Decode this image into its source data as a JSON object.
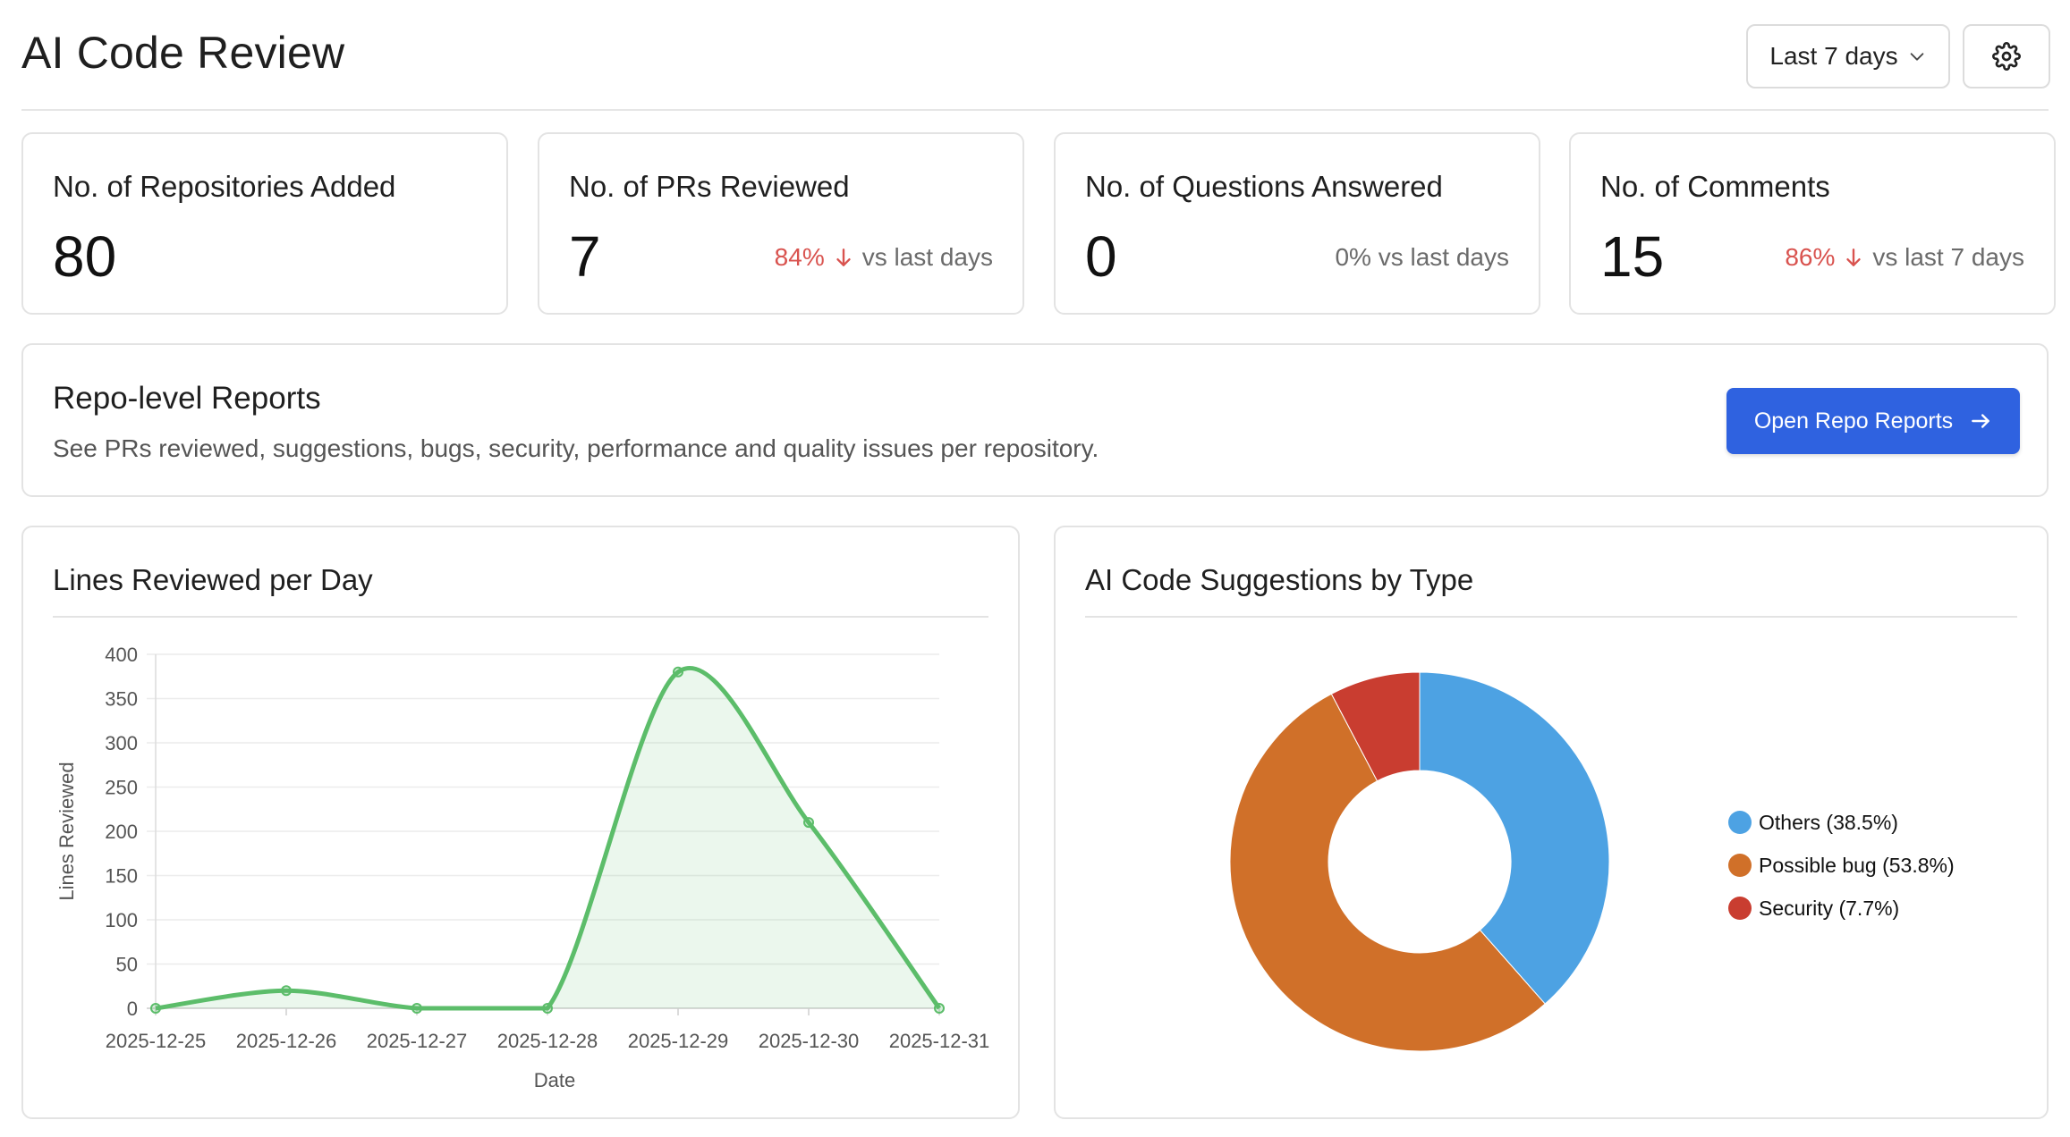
{
  "header": {
    "title": "AI Code Review",
    "range_label": "Last 7 days",
    "settings_icon": "gear-icon",
    "chevron_icon": "chevron-down-icon"
  },
  "stats": [
    {
      "title": "No. of Repositories Added",
      "value": "80",
      "delta_pct": "",
      "delta_text": ""
    },
    {
      "title": "No. of PRs Reviewed",
      "value": "7",
      "delta_pct": "84%",
      "delta_text": "vs last days",
      "delta_direction": "down"
    },
    {
      "title": "No. of Questions Answered",
      "value": "0",
      "delta_pct": "",
      "delta_text": "0% vs last days"
    },
    {
      "title": "No. of Comments",
      "value": "15",
      "delta_pct": "86%",
      "delta_text": "vs last 7 days",
      "delta_direction": "down"
    }
  ],
  "reports": {
    "title": "Repo-level Reports",
    "description": "See PRs reviewed, suggestions, bugs, security, performance and quality issues per repository.",
    "button_label": "Open Repo Reports",
    "button_icon": "arrow-right-icon"
  },
  "colors": {
    "accent": "#2f62e0",
    "negative": "#d9534f",
    "line": "#5cbd6a",
    "others": "#4da2e3",
    "possible_bug": "#d07029",
    "security": "#c93d30"
  },
  "chart_data": [
    {
      "type": "line",
      "title": "Lines Reviewed per Day",
      "xlabel": "Date",
      "ylabel": "Lines Reviewed",
      "x": [
        "2025-12-25",
        "2025-12-26",
        "2025-12-27",
        "2025-12-28",
        "2025-12-29",
        "2025-12-30",
        "2025-12-31"
      ],
      "values": [
        0,
        20,
        0,
        0,
        380,
        210,
        0
      ],
      "ylim": [
        0,
        400
      ],
      "yticks": [
        0,
        50,
        100,
        150,
        200,
        250,
        300,
        350,
        400
      ],
      "filled": true,
      "grid": true
    },
    {
      "type": "pie",
      "title": "AI Code Suggestions by Type",
      "donut": true,
      "categories": [
        "Others",
        "Possible bug",
        "Security"
      ],
      "values": [
        38.5,
        53.8,
        7.7
      ],
      "legend_labels": [
        "Others (38.5%)",
        "Possible bug (53.8%)",
        "Security (7.7%)"
      ],
      "legend_position": "right"
    }
  ]
}
